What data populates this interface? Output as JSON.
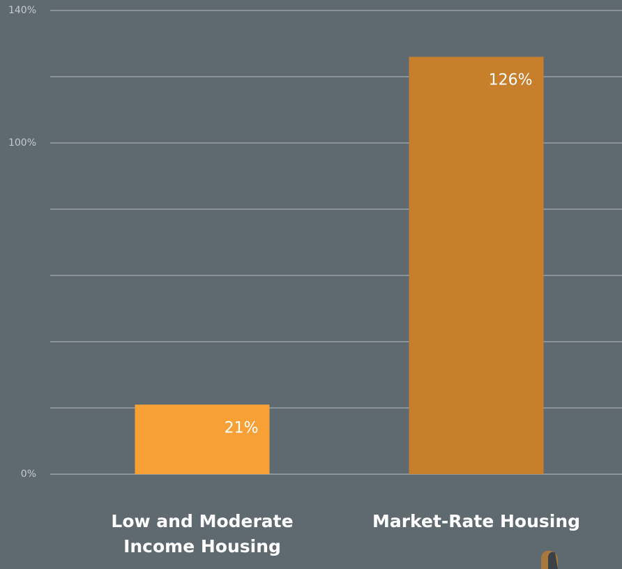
{
  "chart_data": {
    "type": "bar",
    "categories": [
      "Low and Moderate Income Housing",
      "Market-Rate Housing"
    ],
    "values": [
      21,
      126
    ],
    "value_labels": [
      "21%",
      "126%"
    ],
    "colors": [
      "#f7a035",
      "#c77f2b"
    ],
    "ylim": [
      0,
      140
    ],
    "yticks": [
      {
        "value": 0,
        "label": "0%"
      },
      {
        "value": 20,
        "label": null
      },
      {
        "value": 40,
        "label": null
      },
      {
        "value": 60,
        "label": null
      },
      {
        "value": 80,
        "label": null
      },
      {
        "value": 100,
        "label": "100%"
      },
      {
        "value": 120,
        "label": null
      },
      {
        "value": 140,
        "label": "140%"
      }
    ],
    "grid": true
  }
}
